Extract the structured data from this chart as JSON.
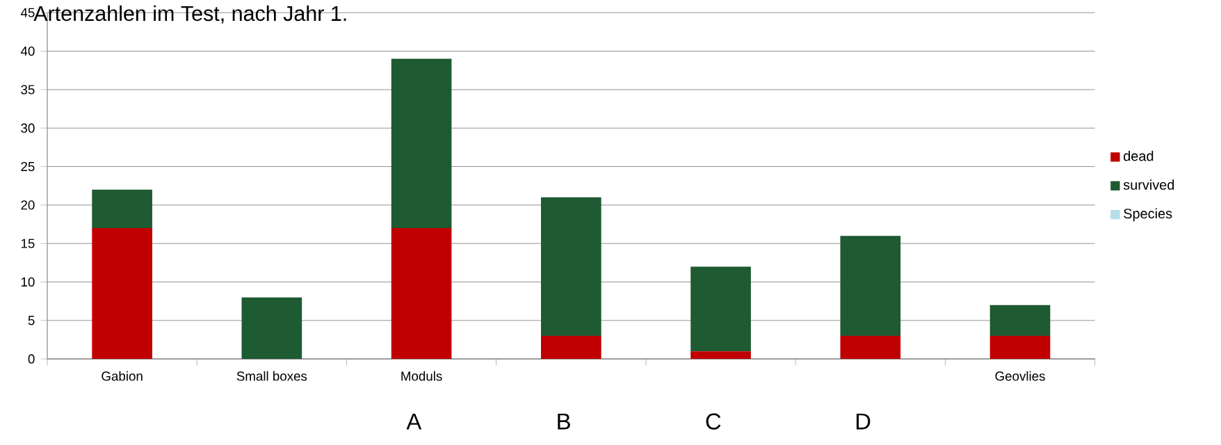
{
  "chart_data": {
    "type": "bar",
    "title": "Artenzahlen im Test, nach Jahr 1.",
    "categories": [
      "Gabion",
      "Small boxes",
      "Moduls",
      null,
      null,
      null,
      "Geovlies"
    ],
    "series": [
      {
        "name": "dead",
        "color": "#c00000",
        "values": [
          17,
          0,
          17,
          3,
          1,
          3,
          3
        ]
      },
      {
        "name": "survived",
        "color": "#1e5a32",
        "values": [
          5,
          8,
          22,
          18,
          11,
          13,
          4
        ]
      },
      {
        "name": "Species",
        "color": "#b7dde8",
        "values": [
          null,
          null,
          null,
          null,
          null,
          null,
          null
        ]
      }
    ],
    "stacked": true,
    "ylim": [
      0,
      45
    ],
    "yticks": [
      0,
      5,
      10,
      15,
      20,
      25,
      30,
      35,
      40,
      45
    ],
    "grid": "y",
    "legend": "right",
    "annotations": [
      "A",
      "B",
      "C",
      "D"
    ]
  }
}
